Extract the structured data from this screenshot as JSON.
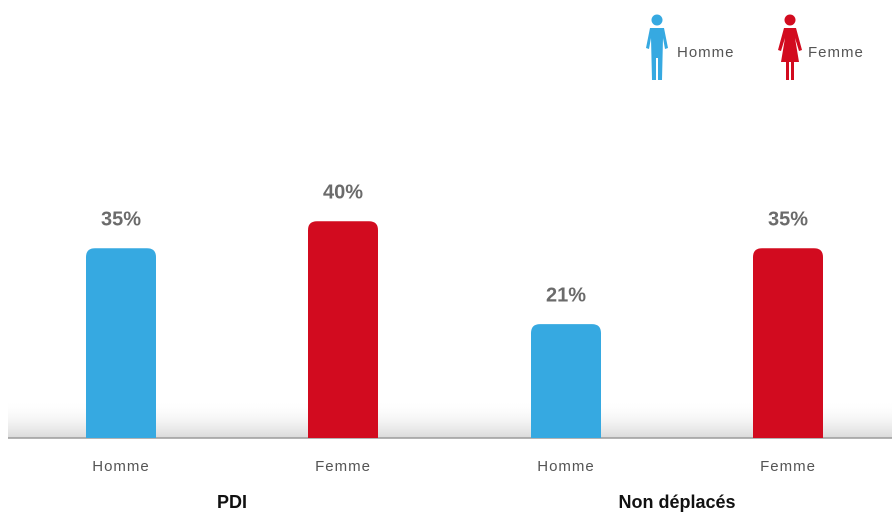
{
  "chart_data": {
    "type": "bar",
    "categories": [
      "PDI",
      "Non déplacés"
    ],
    "series": [
      {
        "name": "Homme",
        "color": "#36a9e1",
        "values": [
          35,
          21
        ],
        "value_labels": [
          "35%",
          "21%"
        ]
      },
      {
        "name": "Femme",
        "color": "#d20b1f",
        "values": [
          40,
          35
        ],
        "value_labels": [
          "40%",
          "35%"
        ]
      }
    ],
    "legend": "top-right"
  }
}
